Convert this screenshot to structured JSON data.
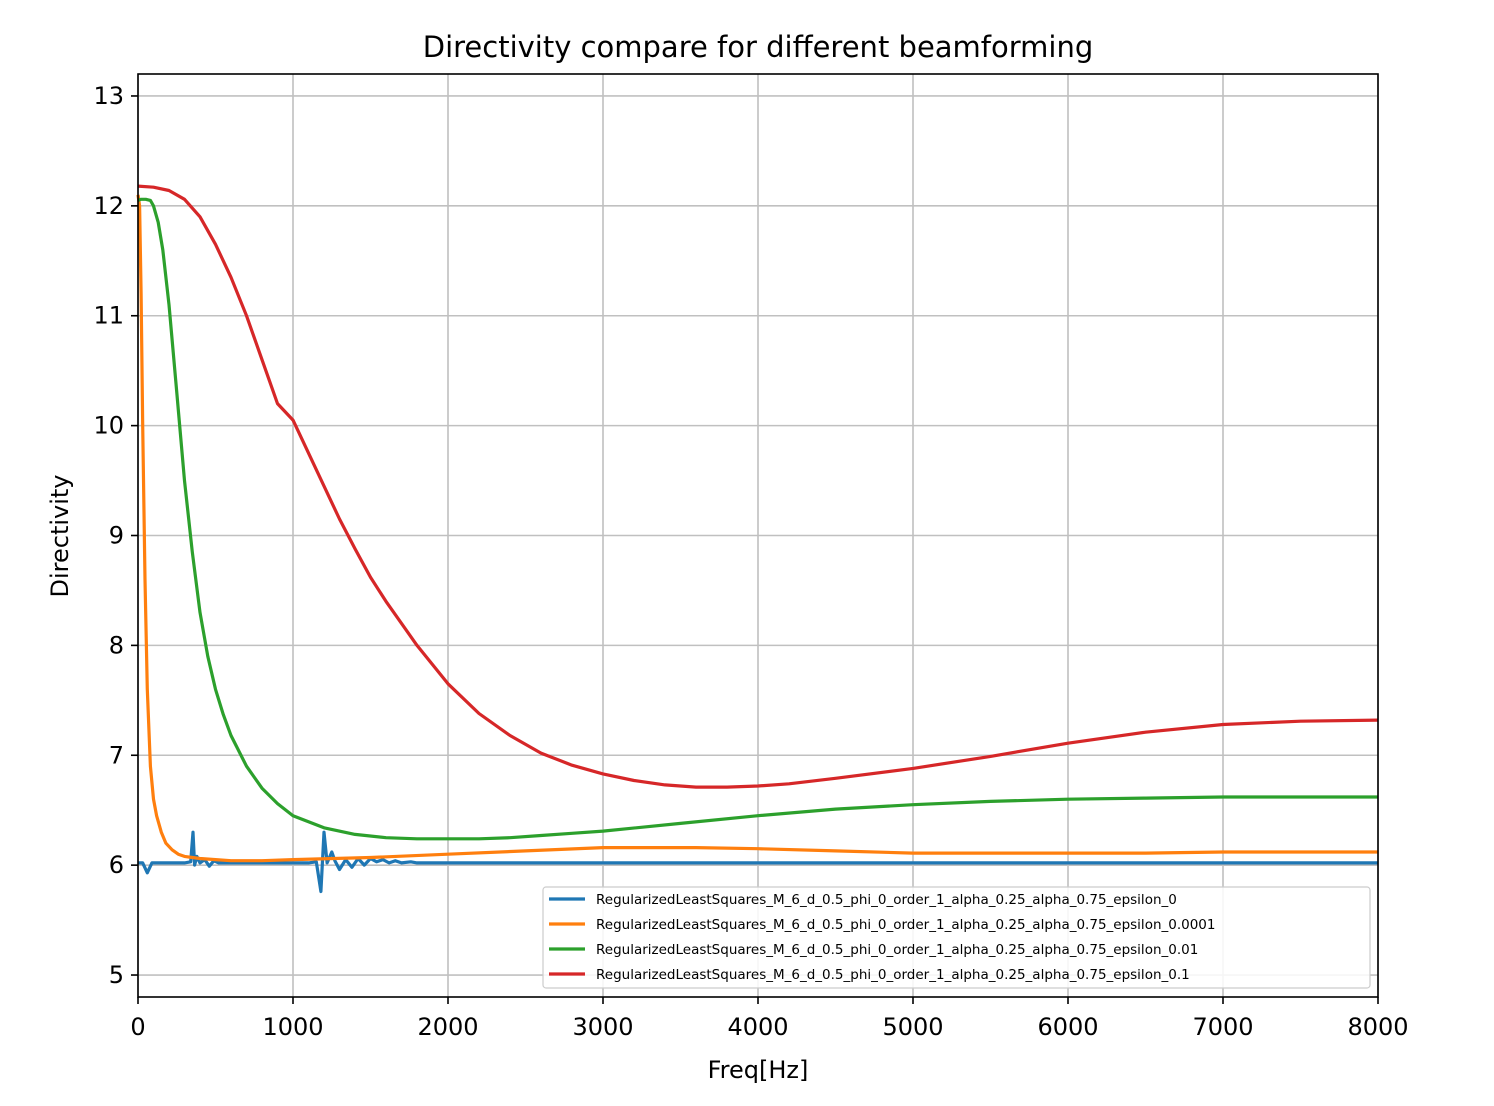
{
  "chart_data": {
    "type": "line",
    "title": "Directivity compare for different beamforming",
    "xlabel": "Freq[Hz]",
    "ylabel": "Directivity",
    "xlim": [
      0,
      8000
    ],
    "ylim": [
      4.8,
      13.2
    ],
    "xticks": [
      0,
      1000,
      2000,
      3000,
      4000,
      5000,
      6000,
      7000,
      8000
    ],
    "xtick_labels": [
      "0",
      "1000",
      "2000",
      "3000",
      "4000",
      "5000",
      "6000",
      "7000",
      "8000"
    ],
    "yticks": [
      5,
      6,
      7,
      8,
      9,
      10,
      11,
      12,
      13
    ],
    "ytick_labels": [
      "5",
      "6",
      "7",
      "8",
      "9",
      "10",
      "11",
      "12",
      "13"
    ],
    "grid": true,
    "legend_position": "lower-right",
    "series": [
      {
        "name": "RegularizedLeastSquares_M_6_d_0.5_phi_0_order_1_alpha_0.25_alpha_0.75_epsilon_0",
        "color": "#1f77b4",
        "x": [
          0,
          30,
          60,
          90,
          120,
          180,
          240,
          300,
          340,
          355,
          365,
          380,
          400,
          430,
          460,
          490,
          520,
          560,
          600,
          700,
          800,
          900,
          1000,
          1100,
          1150,
          1180,
          1200,
          1220,
          1250,
          1270,
          1300,
          1340,
          1380,
          1420,
          1460,
          1500,
          1540,
          1580,
          1620,
          1660,
          1700,
          1760,
          1800,
          1900,
          2000,
          3000,
          4000,
          5000,
          6000,
          7000,
          8000
        ],
        "y": [
          6.02,
          6.02,
          5.93,
          6.02,
          6.02,
          6.02,
          6.02,
          6.02,
          6.03,
          6.3,
          6.0,
          6.08,
          6.02,
          6.05,
          5.99,
          6.04,
          6.02,
          6.02,
          6.02,
          6.02,
          6.02,
          6.02,
          6.02,
          6.02,
          6.03,
          5.76,
          6.3,
          6.02,
          6.12,
          6.04,
          5.96,
          6.05,
          5.98,
          6.06,
          6.0,
          6.06,
          6.03,
          6.05,
          6.02,
          6.04,
          6.02,
          6.03,
          6.02,
          6.02,
          6.02,
          6.02,
          6.02,
          6.02,
          6.02,
          6.02,
          6.02
        ]
      },
      {
        "name": "RegularizedLeastSquares_M_6_d_0.5_phi_0_order_1_alpha_0.25_alpha_0.75_epsilon_0.0001",
        "color": "#ff7f0e",
        "x": [
          0,
          10,
          20,
          30,
          45,
          60,
          80,
          100,
          120,
          150,
          180,
          220,
          260,
          300,
          350,
          400,
          500,
          600,
          700,
          800,
          1000,
          1500,
          2000,
          2500,
          3000,
          3300,
          3600,
          4000,
          4500,
          5000,
          5500,
          6000,
          6500,
          7000,
          7500,
          8000
        ],
        "y": [
          12.1,
          12.0,
          11.2,
          10.0,
          8.6,
          7.6,
          6.9,
          6.6,
          6.45,
          6.3,
          6.2,
          6.14,
          6.1,
          6.08,
          6.07,
          6.06,
          6.05,
          6.04,
          6.04,
          6.04,
          6.05,
          6.07,
          6.1,
          6.13,
          6.16,
          6.16,
          6.16,
          6.15,
          6.13,
          6.11,
          6.11,
          6.11,
          6.11,
          6.12,
          6.12,
          6.12
        ]
      },
      {
        "name": "RegularizedLeastSquares_M_6_d_0.5_phi_0_order_1_alpha_0.25_alpha_0.75_epsilon_0.01",
        "color": "#2ca02c",
        "x": [
          0,
          20,
          50,
          80,
          100,
          130,
          160,
          200,
          250,
          300,
          350,
          400,
          450,
          500,
          550,
          600,
          700,
          800,
          900,
          1000,
          1200,
          1400,
          1600,
          1800,
          2000,
          2200,
          2400,
          2600,
          2800,
          3000,
          3500,
          4000,
          4500,
          5000,
          5500,
          6000,
          6500,
          7000,
          7500,
          8000
        ],
        "y": [
          12.05,
          12.06,
          12.06,
          12.05,
          12.0,
          11.85,
          11.6,
          11.1,
          10.3,
          9.5,
          8.85,
          8.3,
          7.9,
          7.6,
          7.37,
          7.18,
          6.9,
          6.7,
          6.56,
          6.45,
          6.34,
          6.28,
          6.25,
          6.24,
          6.24,
          6.24,
          6.25,
          6.27,
          6.29,
          6.31,
          6.38,
          6.45,
          6.51,
          6.55,
          6.58,
          6.6,
          6.61,
          6.62,
          6.62,
          6.62
        ]
      },
      {
        "name": "RegularizedLeastSquares_M_6_d_0.5_phi_0_order_1_alpha_0.25_alpha_0.75_epsilon_0.1",
        "color": "#d62728",
        "x": [
          0,
          100,
          200,
          300,
          400,
          500,
          600,
          700,
          800,
          900,
          1000,
          1100,
          1200,
          1300,
          1400,
          1500,
          1600,
          1800,
          2000,
          2200,
          2400,
          2600,
          2800,
          3000,
          3200,
          3400,
          3600,
          3800,
          4000,
          4200,
          4500,
          5000,
          5500,
          6000,
          6500,
          7000,
          7500,
          8000
        ],
        "y": [
          12.18,
          12.17,
          12.14,
          12.06,
          11.9,
          11.65,
          11.35,
          11.0,
          10.6,
          10.2,
          10.05,
          9.75,
          9.45,
          9.15,
          8.88,
          8.62,
          8.4,
          8.0,
          7.65,
          7.38,
          7.18,
          7.02,
          6.91,
          6.83,
          6.77,
          6.73,
          6.71,
          6.71,
          6.72,
          6.74,
          6.79,
          6.88,
          6.99,
          7.11,
          7.21,
          7.28,
          7.31,
          7.32
        ]
      }
    ]
  }
}
